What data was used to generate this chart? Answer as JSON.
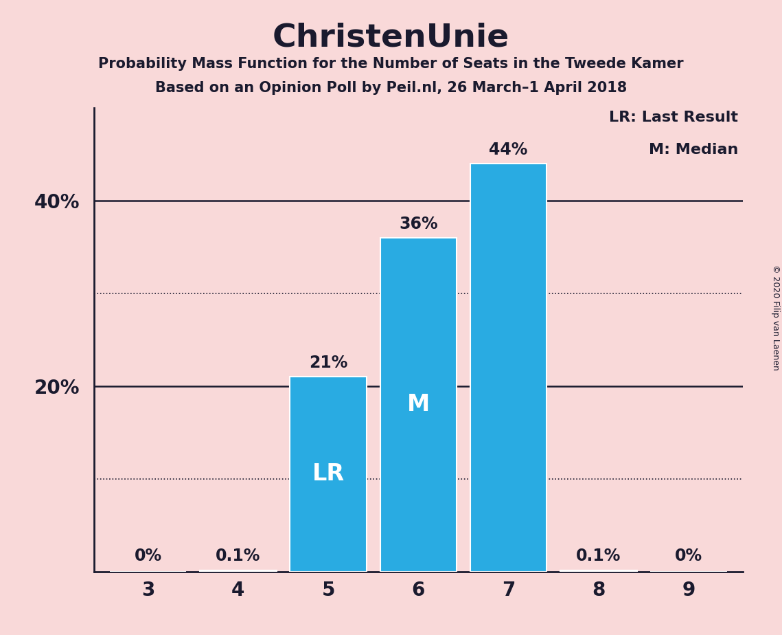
{
  "title": "ChristenUnie",
  "subtitle1": "Probability Mass Function for the Number of Seats in the Tweede Kamer",
  "subtitle2": "Based on an Opinion Poll by Peil.nl, 26 March–1 April 2018",
  "categories": [
    3,
    4,
    5,
    6,
    7,
    8,
    9
  ],
  "values": [
    0.0,
    0.001,
    0.21,
    0.36,
    0.44,
    0.001,
    0.0
  ],
  "bar_labels": [
    "0%",
    "0.1%",
    "21%",
    "36%",
    "44%",
    "0.1%",
    "0%"
  ],
  "bar_color": "#29abe2",
  "background_color": "#f9d9d9",
  "text_color": "#1a1a2e",
  "lr_seat": 5,
  "median_seat": 6,
  "legend_lr": "LR: Last Result",
  "legend_m": "M: Median",
  "copyright": "© 2020 Filip van Laenen",
  "ylim": [
    0,
    0.5
  ],
  "yticks_labeled": [
    0.2,
    0.4
  ],
  "ytick_labels": [
    "20%",
    "40%"
  ],
  "yticks_dotted": [
    0.1,
    0.3
  ],
  "yticks_solid": [
    0.2,
    0.4
  ],
  "bar_width": 0.85
}
